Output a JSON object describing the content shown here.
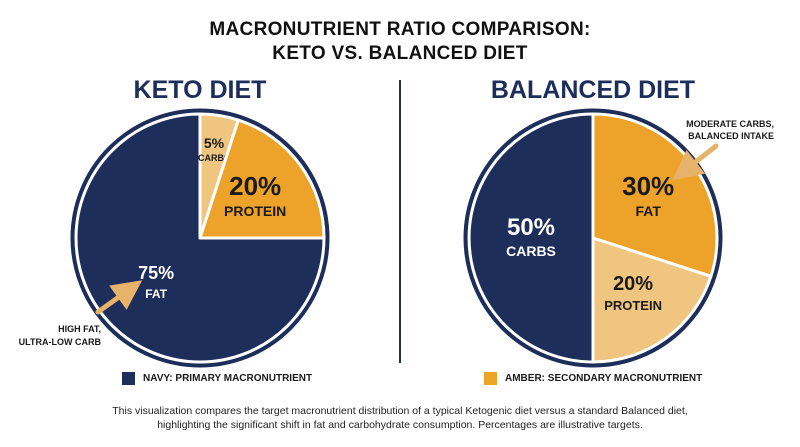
{
  "page": {
    "title_line1": "MACRONUTRIENT RATIO COMPARISON:",
    "title_line2": "KETO VS. BALANCED DIET",
    "caption_line1": "This visualization compares the target macronutrient distribution of a typical Ketogenic diet versus a standard Balanced diet,",
    "caption_line2": "highlighting the significant shift in fat and carbohydrate consumption. Percentages are illustrative targets."
  },
  "colors": {
    "navy": "#1d2e5b",
    "amber": "#eda32a",
    "light_amber": "#f0c57f"
  },
  "legend": [
    {
      "label": "NAVY: PRIMARY MACRONUTRIENT",
      "color": "#1d2e5b"
    },
    {
      "label": "AMBER: SECONDARY MACRONUTRIENT",
      "color": "#eda32a"
    }
  ],
  "chart_data": [
    {
      "type": "pie",
      "title": "KETO DIET",
      "categories": [
        "FAT",
        "CARBS",
        "PROTEIN"
      ],
      "values": [
        75,
        5,
        20
      ],
      "value_labels": [
        "75%",
        "5%",
        "20%"
      ],
      "colors": [
        "#1d2e5b",
        "#f0c57f",
        "#eda32a"
      ],
      "annotation": {
        "line1": "HIGH FAT,",
        "line2": "ULTRA-LOW CARB"
      }
    },
    {
      "type": "pie",
      "title": "BALANCED DIET",
      "categories": [
        "CARBS",
        "FAT",
        "PROTEIN"
      ],
      "values": [
        50,
        30,
        20
      ],
      "value_labels": [
        "50%",
        "30%",
        "20%"
      ],
      "colors": [
        "#1d2e5b",
        "#eda32a",
        "#f0c57f"
      ],
      "annotation": {
        "line1": "MODERATE CARBS,",
        "line2": "BALANCED INTAKE"
      }
    }
  ]
}
